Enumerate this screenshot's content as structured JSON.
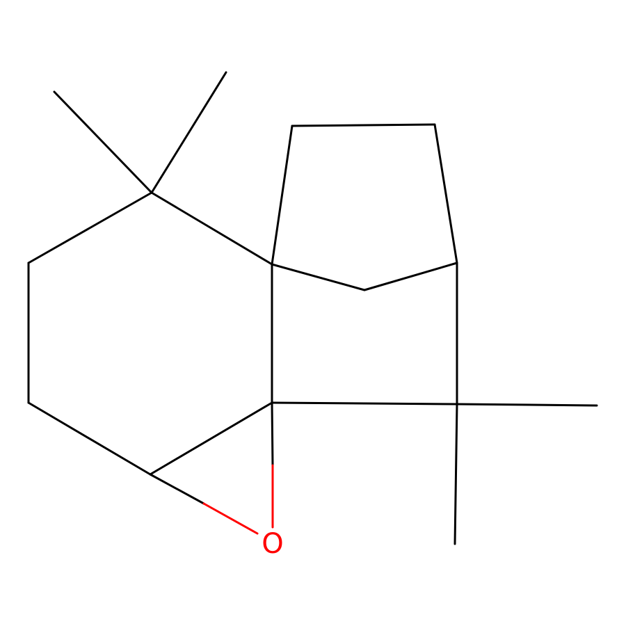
{
  "molecule": {
    "atoms": [
      {
        "id": "o1",
        "element": "O",
        "label": "O",
        "color": "#ff0000"
      }
    ]
  },
  "colors": {
    "bond": "#000000",
    "heteroatom_oxygen": "#ff0000",
    "background": "#ffffff"
  }
}
